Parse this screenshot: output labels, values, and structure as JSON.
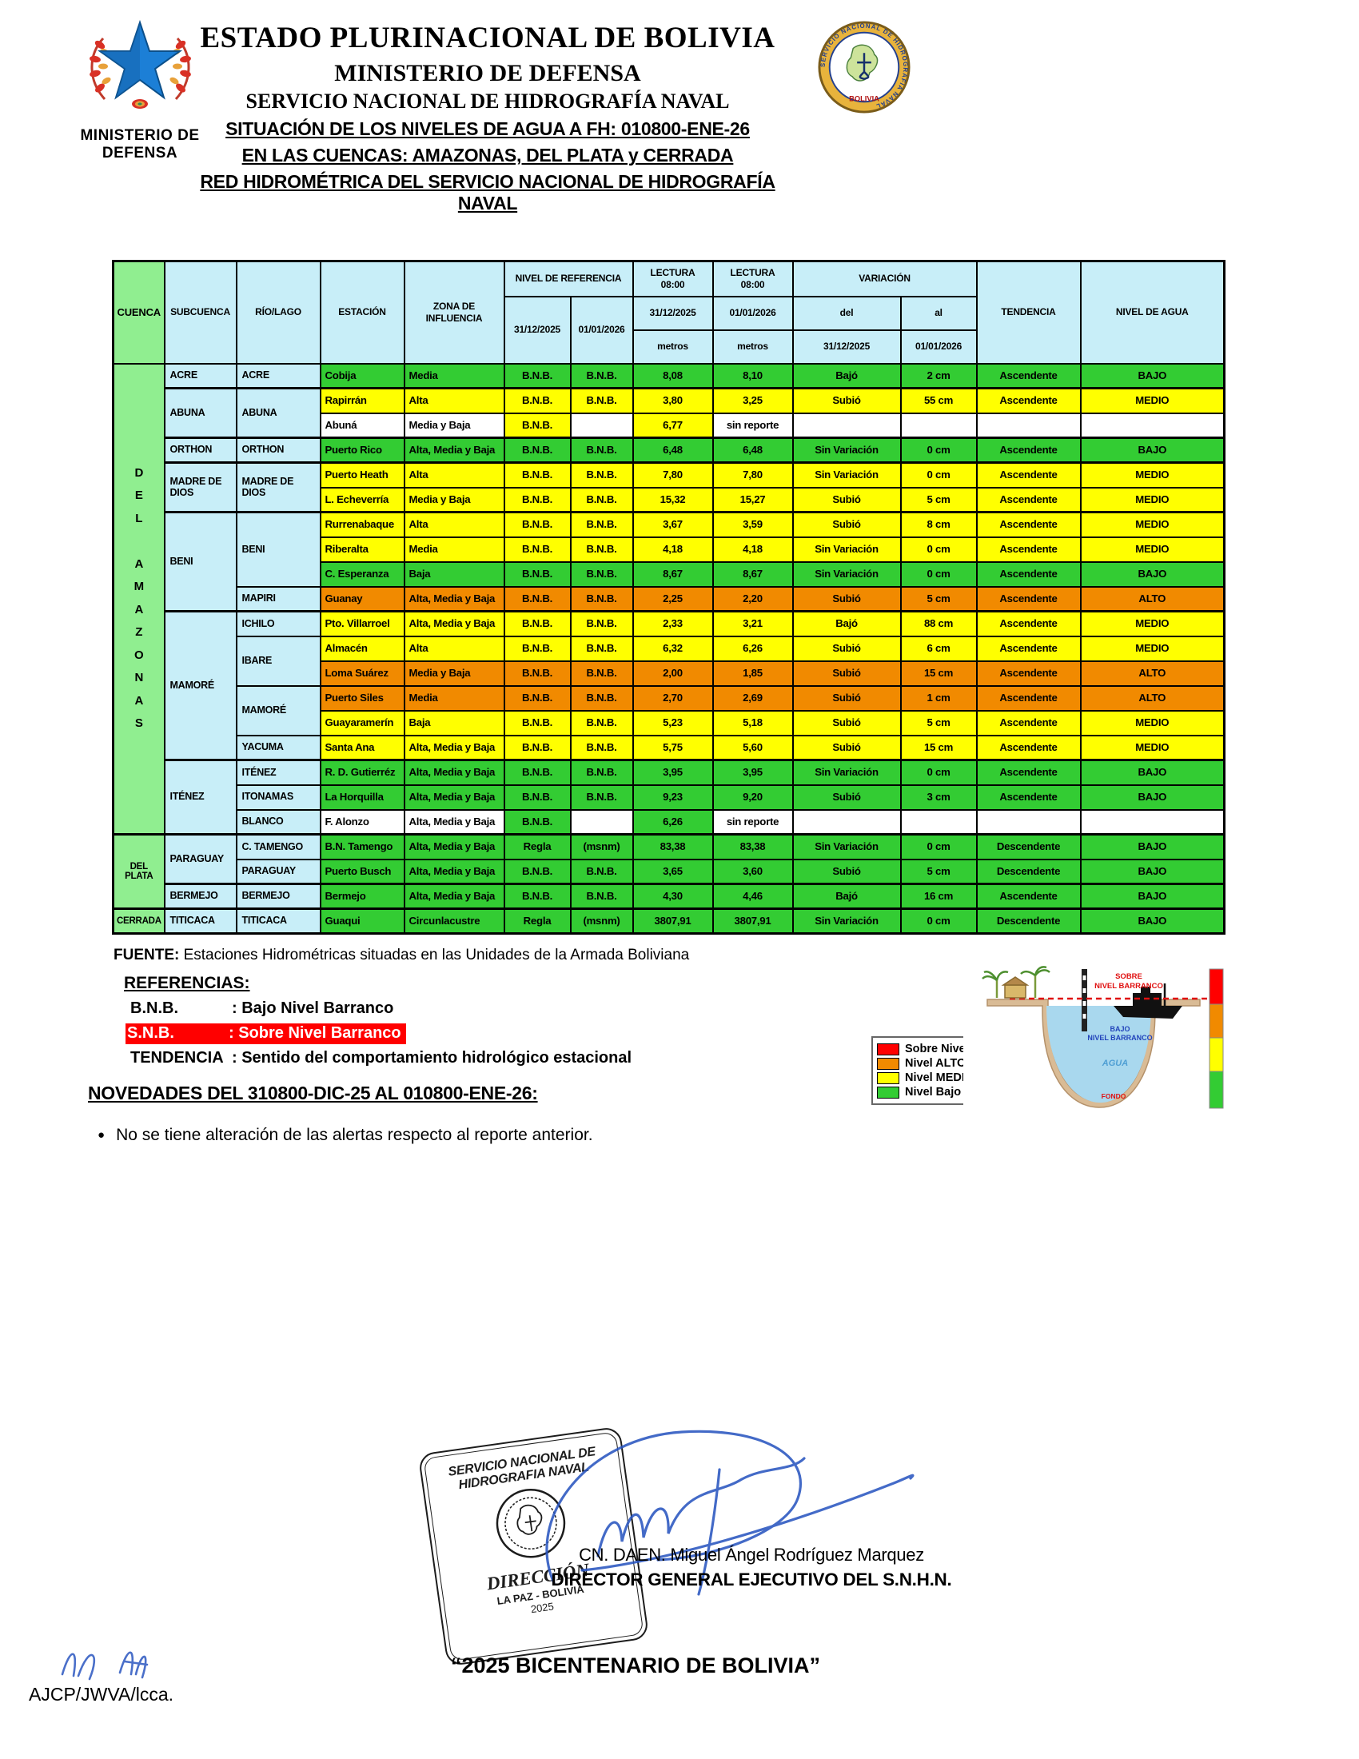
{
  "colors": {
    "green": "#33cc33",
    "yellow": "#ffff00",
    "orange": "#f18a00",
    "white": "#ffffff",
    "header_cyan": "#c8eef8",
    "header_green": "#90ee90",
    "highlight_red": "#ff0000"
  },
  "header": {
    "ministry_label": "MINISTERIO DE DEFENSA",
    "title1": "ESTADO PLURINACIONAL DE BOLIVIA",
    "title2": "MINISTERIO DE DEFENSA",
    "title3": "SERVICIO NACIONAL DE HIDROGRAFÍA NAVAL",
    "subtitle1": "SITUACIÓN DE LOS NIVELES DE AGUA A FH: 010800-ENE-26",
    "subtitle2": "EN LAS CUENCAS: AMAZONAS, DEL PLATA y CERRADA",
    "subtitle3": "RED HIDROMÉTRICA DEL SERVICIO NACIONAL DE HIDROGRAFÍA NAVAL",
    "naval_logo": {
      "ring_text": "SERVICIO NACIONAL DE HIDROGRAFIA NAVAL",
      "country": "BOLIVIA"
    }
  },
  "table": {
    "headers": {
      "cuenca": "CUENCA",
      "subcuenca": "SUBCUENCA",
      "rio": "RÍO/LAGO",
      "estacion": "ESTACIÓN",
      "zona": "ZONA DE INFLUENCIA",
      "nivel_ref": "NIVEL DE REFERENCIA",
      "lectura": "LECTURA\n08:00",
      "variacion": "VARIACIÓN",
      "tendencia": "TENDENCIA",
      "nivel_agua": "NIVEL DE AGUA",
      "date1": "31/12/2025",
      "date2": "01/01/2026",
      "metros": "metros",
      "del": "del",
      "al": "al"
    },
    "rows": [
      {
        "cuenca": {
          "name": "DEL AMAZONAS",
          "span": 19,
          "vertical": true
        },
        "subcuenca": {
          "name": "ACRE",
          "span": 1
        },
        "rio": {
          "name": "ACRE",
          "span": 1
        },
        "estacion": "Cobija",
        "zona": "Media",
        "ref1": "B.N.B.",
        "ref2": "B.N.B.",
        "lect1": "8,08",
        "lect2": "8,10",
        "var_del": "Bajó",
        "var_al": "2 cm",
        "tendencia": "Ascendente",
        "nivel": "BAJO",
        "color": "green"
      },
      {
        "group_top": true,
        "subcuenca": {
          "name": "ABUNA",
          "span": 2
        },
        "rio": {
          "name": "ABUNA",
          "span": 2
        },
        "estacion": "Rapirrán",
        "zona": "Alta",
        "ref1": "B.N.B.",
        "ref2": "B.N.B.",
        "lect1": "3,80",
        "lect2": "3,25",
        "var_del": "Subió",
        "var_al": "55 cm",
        "tendencia": "Ascendente",
        "nivel": "MEDIO",
        "color": "yellow"
      },
      {
        "estacion": "Abuná",
        "zona": "Media y Baja",
        "ref1": "B.N.B.",
        "ref2": "",
        "lect1": "6,77",
        "lect2": "sin reporte",
        "var_del": "",
        "var_al": "",
        "tendencia": "",
        "nivel": "",
        "color": "white",
        "cell_colors": {
          "ref1": "yellow",
          "lect1": "yellow"
        }
      },
      {
        "group_top": true,
        "subcuenca": {
          "name": "ORTHON",
          "span": 1
        },
        "rio": {
          "name": "ORTHON",
          "span": 1
        },
        "estacion": "Puerto Rico",
        "zona": "Alta, Media y Baja",
        "ref1": "B.N.B.",
        "ref2": "B.N.B.",
        "lect1": "6,48",
        "lect2": "6,48",
        "var_del": "Sin Variación",
        "var_al": "0 cm",
        "tendencia": "Ascendente",
        "nivel": "BAJO",
        "color": "green"
      },
      {
        "group_top": true,
        "subcuenca": {
          "name": "MADRE DE DIOS",
          "span": 2
        },
        "rio": {
          "name": "MADRE DE DIOS",
          "span": 2
        },
        "estacion": "Puerto Heath",
        "zona": "Alta",
        "ref1": "B.N.B.",
        "ref2": "B.N.B.",
        "lect1": "7,80",
        "lect2": "7,80",
        "var_del": "Sin Variación",
        "var_al": "0 cm",
        "tendencia": "Ascendente",
        "nivel": "MEDIO",
        "color": "yellow"
      },
      {
        "estacion": "L. Echeverría",
        "zona": "Media y Baja",
        "ref1": "B.N.B.",
        "ref2": "B.N.B.",
        "lect1": "15,32",
        "lect2": "15,27",
        "var_del": "Subió",
        "var_al": "5 cm",
        "tendencia": "Ascendente",
        "nivel": "MEDIO",
        "color": "yellow"
      },
      {
        "group_top": true,
        "subcuenca": {
          "name": "BENI",
          "span": 4
        },
        "rio": {
          "name": "BENI",
          "span": 3
        },
        "estacion": "Rurrenabaque",
        "zona": "Alta",
        "ref1": "B.N.B.",
        "ref2": "B.N.B.",
        "lect1": "3,67",
        "lect2": "3,59",
        "var_del": "Subió",
        "var_al": "8 cm",
        "tendencia": "Ascendente",
        "nivel": "MEDIO",
        "color": "yellow"
      },
      {
        "estacion": "Riberalta",
        "zona": "Media",
        "ref1": "B.N.B.",
        "ref2": "B.N.B.",
        "lect1": "4,18",
        "lect2": "4,18",
        "var_del": "Sin Variación",
        "var_al": "0 cm",
        "tendencia": "Ascendente",
        "nivel": "MEDIO",
        "color": "yellow"
      },
      {
        "estacion": "C. Esperanza",
        "zona": "Baja",
        "ref1": "B.N.B.",
        "ref2": "B.N.B.",
        "lect1": "8,67",
        "lect2": "8,67",
        "var_del": "Sin Variación",
        "var_al": "0 cm",
        "tendencia": "Ascendente",
        "nivel": "BAJO",
        "color": "green"
      },
      {
        "rio": {
          "name": "MAPIRI",
          "span": 1
        },
        "estacion": "Guanay",
        "zona": "Alta, Media y Baja",
        "ref1": "B.N.B.",
        "ref2": "B.N.B.",
        "lect1": "2,25",
        "lect2": "2,20",
        "var_del": "Subió",
        "var_al": "5 cm",
        "tendencia": "Ascendente",
        "nivel": "ALTO",
        "color": "orange"
      },
      {
        "group_top": true,
        "subcuenca": {
          "name": "MAMORÉ",
          "span": 6
        },
        "rio": {
          "name": "ICHILO",
          "span": 1
        },
        "estacion": "Pto. Villarroel",
        "zona": "Alta, Media y Baja",
        "ref1": "B.N.B.",
        "ref2": "B.N.B.",
        "lect1": "2,33",
        "lect2": "3,21",
        "var_del": "Bajó",
        "var_al": "88 cm",
        "tendencia": "Ascendente",
        "nivel": "MEDIO",
        "color": "yellow"
      },
      {
        "rio": {
          "name": "IBARE",
          "span": 2
        },
        "estacion": "Almacén",
        "zona": "Alta",
        "ref1": "B.N.B.",
        "ref2": "B.N.B.",
        "lect1": "6,32",
        "lect2": "6,26",
        "var_del": "Subió",
        "var_al": "6 cm",
        "tendencia": "Ascendente",
        "nivel": "MEDIO",
        "color": "yellow"
      },
      {
        "estacion": "Loma Suárez",
        "zona": "Media y Baja",
        "ref1": "B.N.B.",
        "ref2": "B.N.B.",
        "lect1": "2,00",
        "lect2": "1,85",
        "var_del": "Subió",
        "var_al": "15 cm",
        "tendencia": "Ascendente",
        "nivel": "ALTO",
        "color": "orange"
      },
      {
        "rio": {
          "name": "MAMORÉ",
          "span": 2
        },
        "estacion": "Puerto Siles",
        "zona": "Media",
        "ref1": "B.N.B.",
        "ref2": "B.N.B.",
        "lect1": "2,70",
        "lect2": "2,69",
        "var_del": "Subió",
        "var_al": "1 cm",
        "tendencia": "Ascendente",
        "nivel": "ALTO",
        "color": "orange"
      },
      {
        "estacion": "Guayaramerín",
        "zona": "Baja",
        "ref1": "B.N.B.",
        "ref2": "B.N.B.",
        "lect1": "5,23",
        "lect2": "5,18",
        "var_del": "Subió",
        "var_al": "5 cm",
        "tendencia": "Ascendente",
        "nivel": "MEDIO",
        "color": "yellow"
      },
      {
        "rio": {
          "name": "YACUMA",
          "span": 1
        },
        "estacion": "Santa Ana",
        "zona": "Alta, Media y Baja",
        "ref1": "B.N.B.",
        "ref2": "B.N.B.",
        "lect1": "5,75",
        "lect2": "5,60",
        "var_del": "Subió",
        "var_al": "15 cm",
        "tendencia": "Ascendente",
        "nivel": "MEDIO",
        "color": "yellow"
      },
      {
        "group_top": true,
        "subcuenca": {
          "name": "ITÉNEZ",
          "span": 3
        },
        "rio": {
          "name": "ITÉNEZ",
          "span": 1
        },
        "estacion": "R. D. Gutierréz",
        "zona": "Alta, Media y Baja",
        "ref1": "B.N.B.",
        "ref2": "B.N.B.",
        "lect1": "3,95",
        "lect2": "3,95",
        "var_del": "Sin Variación",
        "var_al": "0 cm",
        "tendencia": "Ascendente",
        "nivel": "BAJO",
        "color": "green"
      },
      {
        "rio": {
          "name": "ITONAMAS",
          "span": 1
        },
        "estacion": "La Horquilla",
        "zona": "Alta, Media y Baja",
        "ref1": "B.N.B.",
        "ref2": "B.N.B.",
        "lect1": "9,23",
        "lect2": "9,20",
        "var_del": "Subió",
        "var_al": "3 cm",
        "tendencia": "Ascendente",
        "nivel": "BAJO",
        "color": "green"
      },
      {
        "rio": {
          "name": "BLANCO",
          "span": 1
        },
        "estacion": "F. Alonzo",
        "zona": "Alta, Media y Baja",
        "ref1": "B.N.B.",
        "ref2": "",
        "lect1": "6,26",
        "lect2": "sin reporte",
        "var_del": "",
        "var_al": "",
        "tendencia": "",
        "nivel": "",
        "color": "white",
        "cell_colors": {
          "ref1": "green",
          "lect1": "green"
        }
      },
      {
        "group_top": true,
        "cuenca": {
          "name": "DEL PLATA",
          "span": 3,
          "vertical": false
        },
        "subcuenca": {
          "name": "PARAGUAY",
          "span": 2
        },
        "rio": {
          "name": "C. TAMENGO",
          "span": 1
        },
        "estacion": "B.N. Tamengo",
        "zona": "Alta, Media y Baja",
        "ref1": "Regla",
        "ref2": "(msnm)",
        "lect1": "83,38",
        "lect2": "83,38",
        "var_del": "Sin Variación",
        "var_al": "0 cm",
        "tendencia": "Descendente",
        "nivel": "BAJO",
        "color": "green"
      },
      {
        "rio": {
          "name": "PARAGUAY",
          "span": 1
        },
        "estacion": "Puerto Busch",
        "zona": "Alta, Media y Baja",
        "ref1": "B.N.B.",
        "ref2": "B.N.B.",
        "lect1": "3,65",
        "lect2": "3,60",
        "var_del": "Subió",
        "var_al": "5 cm",
        "tendencia": "Descendente",
        "nivel": "BAJO",
        "color": "green"
      },
      {
        "group_top": true,
        "subcuenca": {
          "name": "BERMEJO",
          "span": 1
        },
        "rio": {
          "name": "BERMEJO",
          "span": 1
        },
        "estacion": "Bermejo",
        "zona": "Alta, Media y Baja",
        "ref1": "B.N.B.",
        "ref2": "B.N.B.",
        "lect1": "4,30",
        "lect2": "4,46",
        "var_del": "Bajó",
        "var_al": "16 cm",
        "tendencia": "Ascendente",
        "nivel": "BAJO",
        "color": "green"
      },
      {
        "group_top": true,
        "cuenca": {
          "name": "CERRADA",
          "span": 1,
          "vertical": false
        },
        "subcuenca": {
          "name": "TITICACA",
          "span": 1
        },
        "rio": {
          "name": "TITICACA",
          "span": 1
        },
        "estacion": "Guaqui",
        "zona": "Circunlacustre",
        "ref1": "Regla",
        "ref2": "(msnm)",
        "lect1": "3807,91",
        "lect2": "3807,91",
        "var_del": "Sin Variación",
        "var_al": "0 cm",
        "tendencia": "Descendente",
        "nivel": "BAJO",
        "color": "green"
      }
    ]
  },
  "footer": {
    "fuente_label": "FUENTE:",
    "fuente_text": "Estaciones Hidrométricas situadas en las Unidades de la Armada Boliviana",
    "referencias_title": "REFERENCIAS:",
    "referencias": [
      {
        "abbr": "B.N.B.",
        "desc": ": Bajo Nivel Barranco"
      },
      {
        "abbr": "S.N.B.",
        "desc": ": Sobre Nivel Barranco"
      },
      {
        "abbr": "TENDENCIA",
        "desc": ": Sentido del comportamiento hidrológico estacional"
      }
    ],
    "novedades_title": "NOVEDADES DEL 310800-DIC-25  AL 010800-ENE-26:",
    "novedades_bullet": "No se tiene alteración de las alertas respecto al reporte anterior.",
    "legend": [
      {
        "label": "Sobre Nivel Barranco",
        "color": "#ff0000"
      },
      {
        "label": "Nivel ALTO",
        "color": "#f18a00"
      },
      {
        "label": "Nivel MEDIO",
        "color": "#ffff00"
      },
      {
        "label": "Nivel Bajo",
        "color": "#33cc33"
      }
    ],
    "diagram": {
      "sobre1": "SOBRE",
      "sobre2": "NIVEL BARRANCO",
      "bajo1": "BAJO",
      "bajo2": "NIVEL BARRANCO",
      "agua": "AGUA",
      "fondo": "FONDO"
    },
    "stamp": {
      "line1": "SERVICIO NACIONAL DE",
      "line2": "HIDROGRAFIA NAVAL",
      "dir": "DIRECCIÓN",
      "city": "LA PAZ - BOLIVIA",
      "year": "2025"
    },
    "signature_name": "CN. DAEN. Miguel Ángel Rodríguez Marquez",
    "signature_title": "DIRECTOR GENERAL EJECUTIVO DEL S.N.H.N.",
    "motto": "“2025 BICENTENARIO DE BOLIVIA”",
    "initials": "AJCP/JWVA/lcca."
  }
}
